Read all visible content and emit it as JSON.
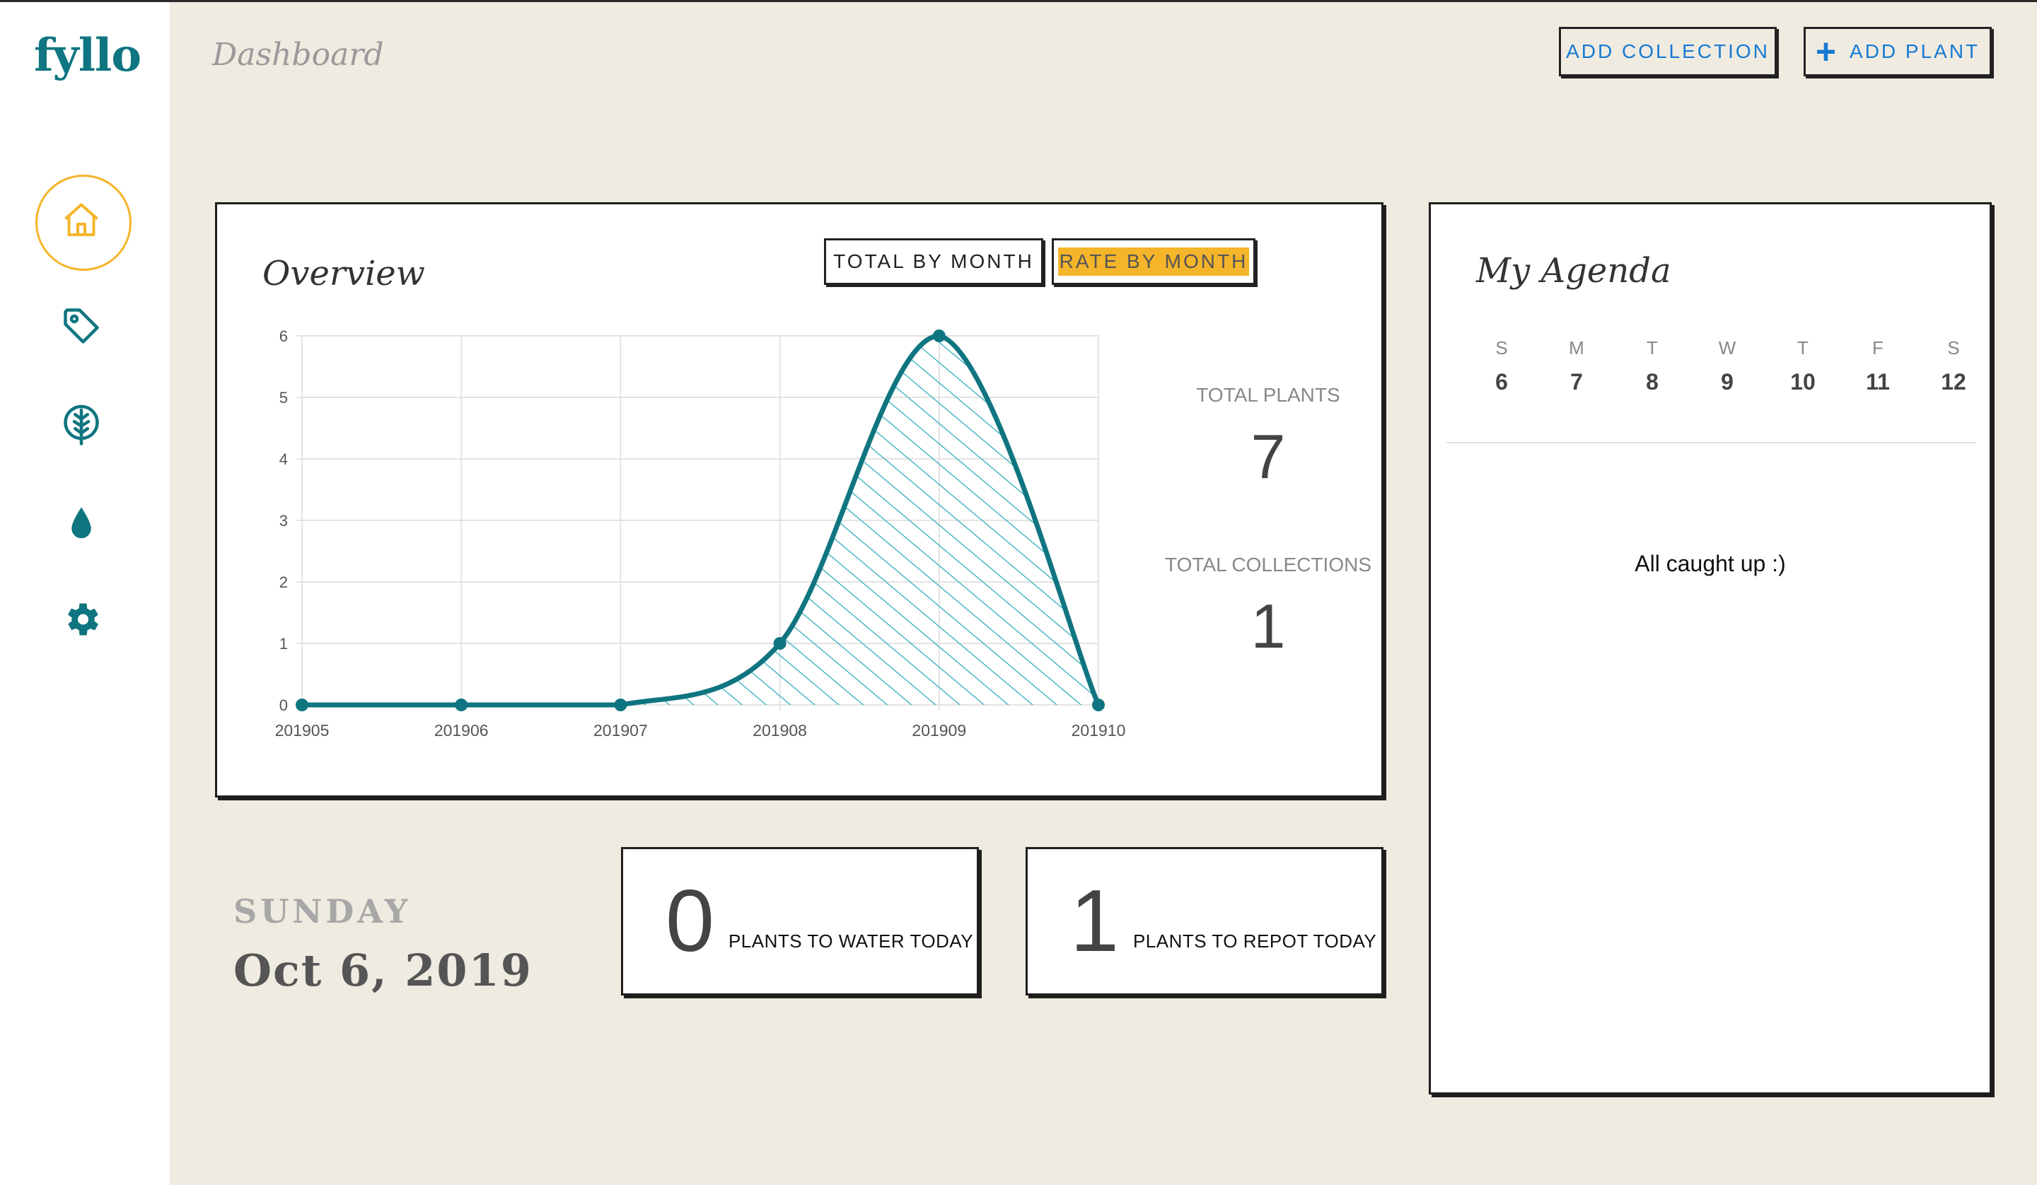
{
  "app": {
    "logo": "fyllo",
    "page_title": "Dashboard"
  },
  "header": {
    "add_collection": "ADD COLLECTION",
    "add_plant": "ADD PLANT"
  },
  "sidebar": {
    "items": [
      {
        "name": "home",
        "icon": "home-icon",
        "active": true
      },
      {
        "name": "tags",
        "icon": "tag-icon",
        "active": false
      },
      {
        "name": "plants",
        "icon": "leaf-icon",
        "active": false
      },
      {
        "name": "watering",
        "icon": "water-drop-icon",
        "active": false
      },
      {
        "name": "settings",
        "icon": "gear-icon",
        "active": false
      }
    ]
  },
  "overview": {
    "title": "Overview",
    "toggles": [
      "TOTAL BY MONTH",
      "RATE BY MONTH"
    ],
    "active_toggle": "RATE BY MONTH",
    "stats": [
      {
        "label": "TOTAL PLANTS",
        "value": "7"
      },
      {
        "label": "TOTAL COLLECTIONS",
        "value": "1"
      }
    ]
  },
  "chart_data": {
    "type": "area",
    "categories": [
      "201905",
      "201906",
      "201907",
      "201908",
      "201909",
      "201910"
    ],
    "values": [
      0,
      0,
      0,
      1,
      6,
      0
    ],
    "ylim": [
      0,
      6
    ],
    "yticks": [
      "0",
      "1",
      "2",
      "3",
      "4",
      "5",
      "6"
    ],
    "grid": true,
    "colors": {
      "line": "#0f7580",
      "hatch": "#4db8c2"
    }
  },
  "today": {
    "weekday": "SUNDAY",
    "date": "Oct 6, 2019",
    "water": {
      "count": "0",
      "label": "PLANTS TO WATER TODAY"
    },
    "repot": {
      "count": "1",
      "label": "PLANTS TO REPOT TODAY"
    }
  },
  "agenda": {
    "title": "My Agenda",
    "days": [
      {
        "letter": "S",
        "num": "6"
      },
      {
        "letter": "M",
        "num": "7"
      },
      {
        "letter": "T",
        "num": "8"
      },
      {
        "letter": "W",
        "num": "9"
      },
      {
        "letter": "T",
        "num": "10"
      },
      {
        "letter": "F",
        "num": "11"
      },
      {
        "letter": "S",
        "num": "12"
      }
    ],
    "empty_message": "All caught up :)"
  },
  "colors": {
    "brand": "#0f7580",
    "accent": "#f5b52a",
    "link": "#1779d2",
    "background": "#efebe1"
  }
}
